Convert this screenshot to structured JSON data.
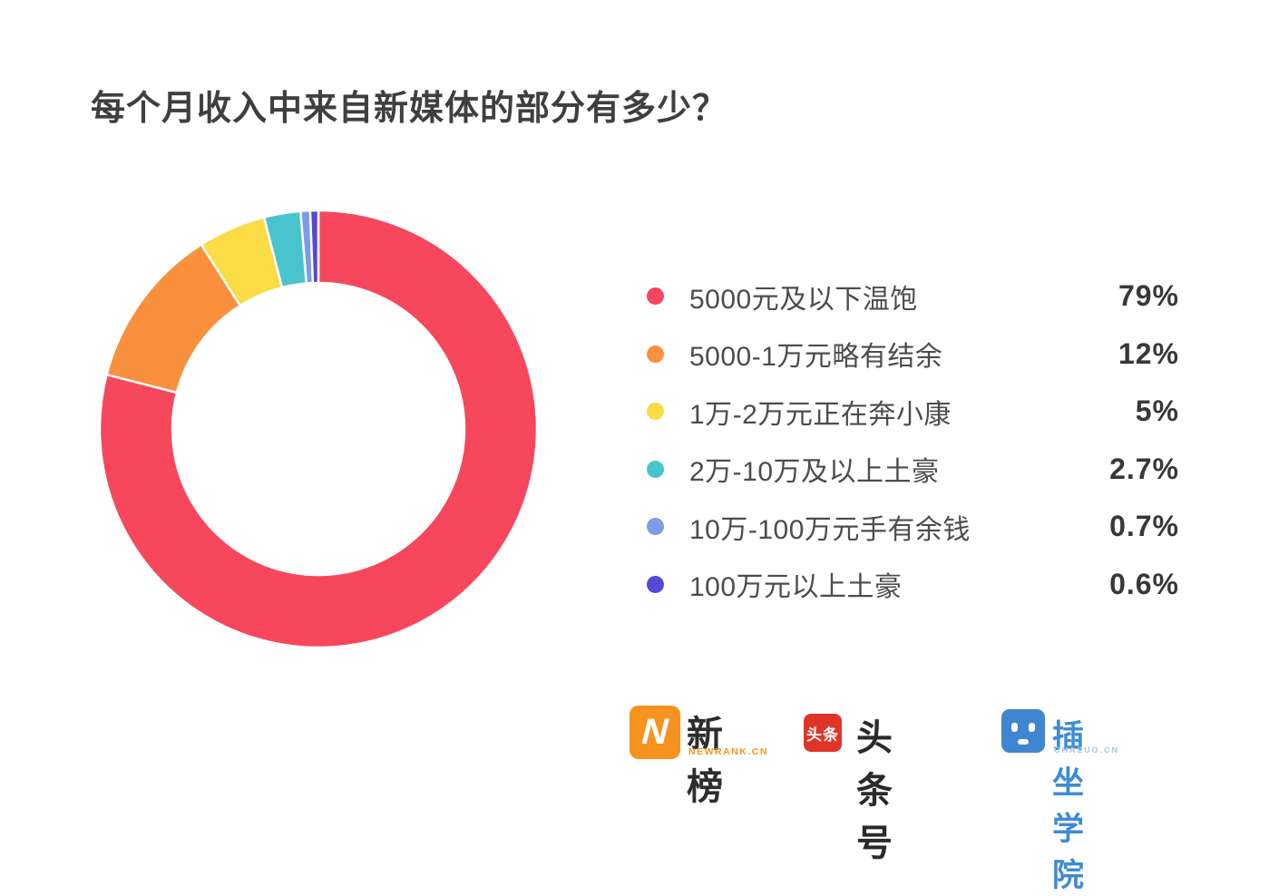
{
  "title": "每个月收入中来自新媒体的部分有多少？",
  "chart_data": {
    "type": "pie",
    "subtype": "donut",
    "title": "每个月收入中来自新媒体的部分有多少？",
    "series": [
      {
        "label": "5000元及以下温饱",
        "value": 79,
        "value_label": "79%",
        "color": "#F7475C"
      },
      {
        "label": "5000-1万元略有结余",
        "value": 12,
        "value_label": "12%",
        "color": "#F9903D"
      },
      {
        "label": "1万-2万元正在奔小康",
        "value": 5,
        "value_label": "5%",
        "color": "#FBDB46"
      },
      {
        "label": "2万-10万及以上土豪",
        "value": 2.7,
        "value_label": "2.7%",
        "color": "#49C4CC"
      },
      {
        "label": "10万-100万元手有余钱",
        "value": 0.7,
        "value_label": "0.7%",
        "color": "#7D9BE9"
      },
      {
        "label": "100万元以上土豪",
        "value": 0.6,
        "value_label": "0.6%",
        "color": "#5848D6"
      }
    ],
    "start_angle_deg": 0,
    "direction": "clockwise",
    "inner_radius_ratio": 0.67,
    "slice_gap_stroke": "#FFFFFF",
    "legend_position": "right",
    "grid": false
  },
  "logos": {
    "newrank": {
      "icon_letter": "N",
      "icon_color": "#F7921E",
      "name": "新榜",
      "sub": "NEWRANK.CN"
    },
    "toutiao": {
      "icon_text": "头条",
      "icon_color": "#E03429",
      "name": "头条号"
    },
    "chazuo": {
      "icon_color": "#3E86D1",
      "name": "插坐学院",
      "sub": "CHAZUO.CN"
    }
  }
}
